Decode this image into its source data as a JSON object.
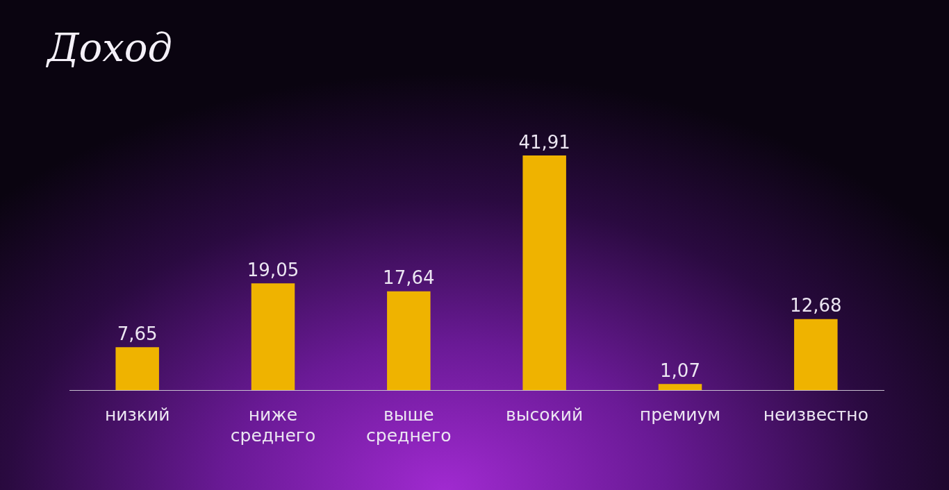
{
  "chart_data": {
    "type": "bar",
    "title": "Доход",
    "categories": [
      "низкий",
      "ниже среднего",
      "выше среднего",
      "высокий",
      "премиум",
      "неизвестно"
    ],
    "values": [
      7.65,
      19.05,
      17.64,
      41.91,
      1.07,
      12.68
    ],
    "value_labels": [
      "7,65",
      "19,05",
      "17,64",
      "41,91",
      "1,07",
      "12,68"
    ],
    "color": "#efb300",
    "grid": false,
    "legend": false
  }
}
